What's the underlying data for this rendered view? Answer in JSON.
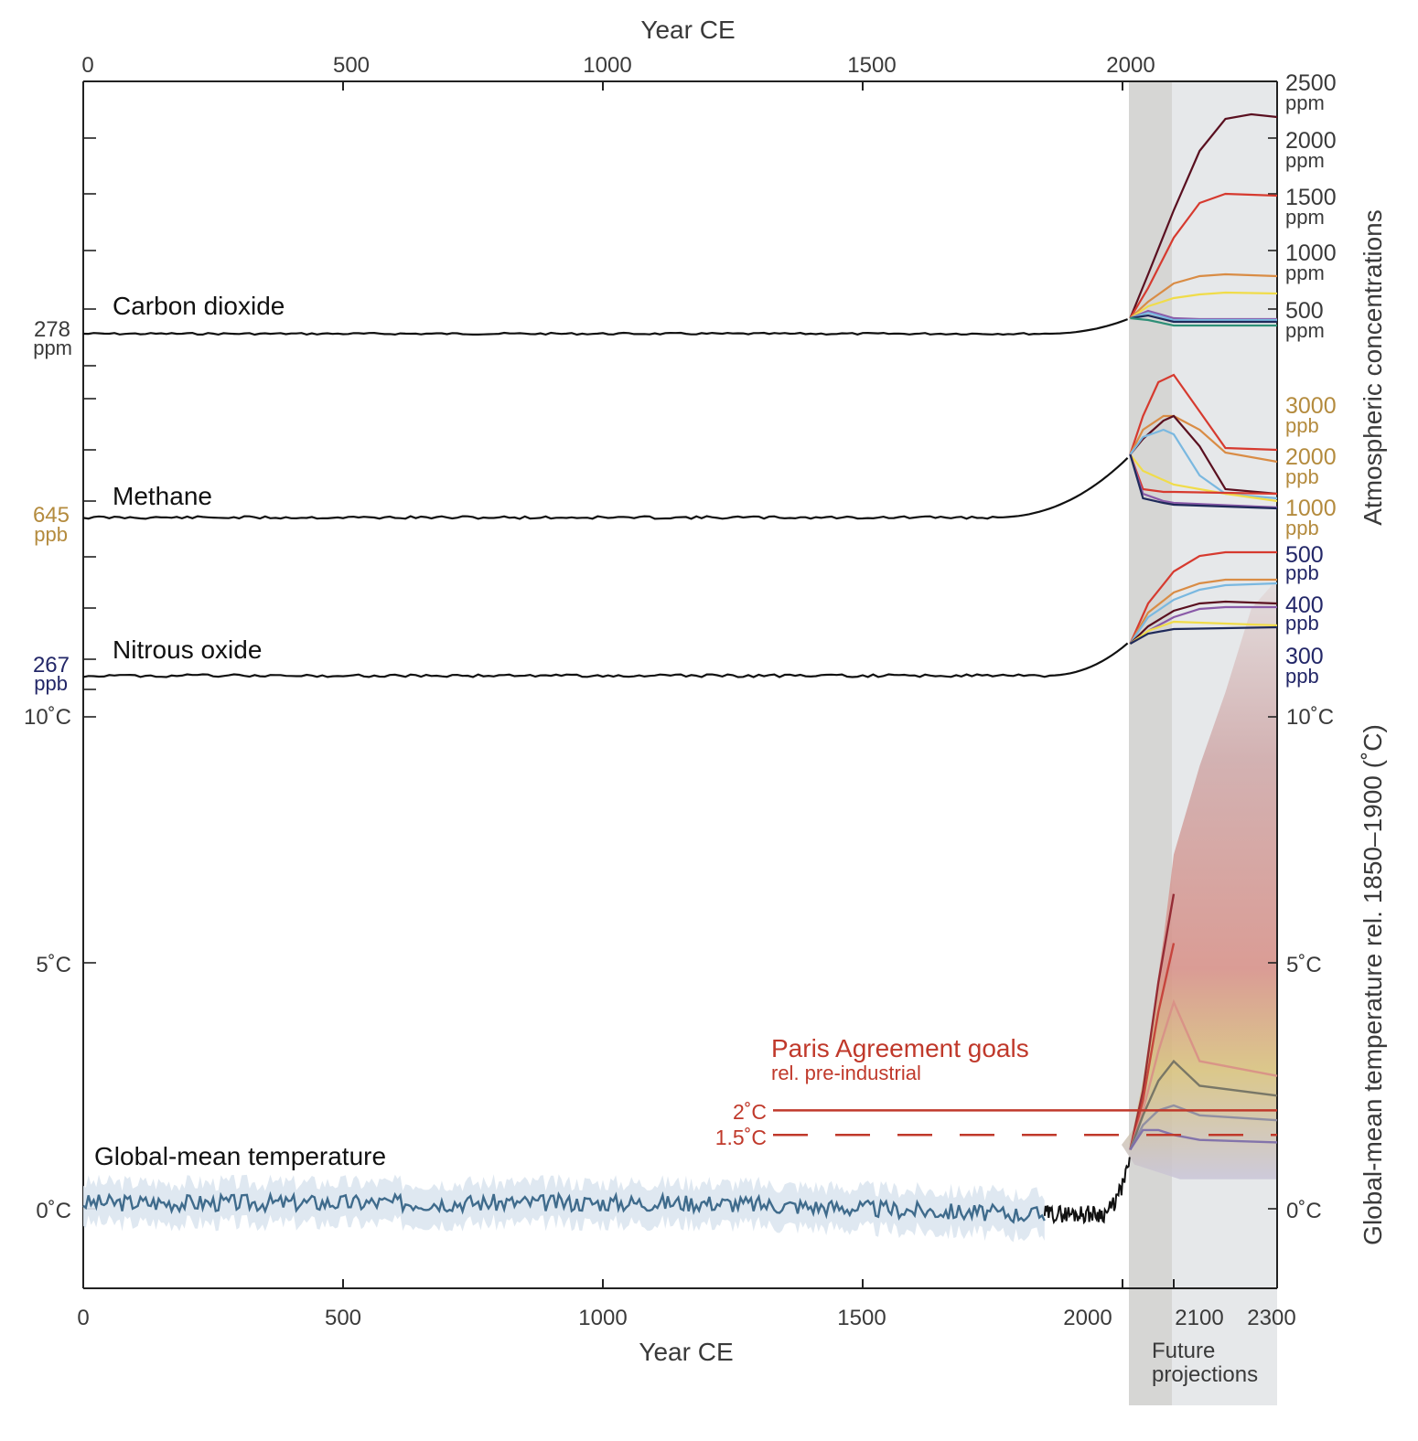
{
  "chart_data": {
    "type": "line",
    "top_axis": {
      "label": "Year CE",
      "ticks": [
        "0",
        "500",
        "1000",
        "1500",
        "2000"
      ]
    },
    "bottom_axis": {
      "label": "Year CE",
      "ticks": [
        "0",
        "500",
        "1000",
        "1500",
        "2000",
        "2100",
        "2300"
      ]
    },
    "right_axis_title_concentration": "Atmospheric concentrations",
    "right_axis_title_temperature": "Global-mean temperature rel. 1850–1900 (˚C)",
    "future_label": "Future projections",
    "future_label_line1": "Future",
    "future_label_line2": "projections",
    "x_range": [
      0,
      2300
    ],
    "future_start_year": 2015,
    "future_2100_year": 2100,
    "colors": {
      "co2_unit": "#3a3a3a",
      "ch4_unit": "#b48b3e",
      "n2o_unit": "#232768",
      "paris": "#c0392b",
      "historical": "#111111",
      "reconstruction": "#3f6b8c",
      "reconstruction_band": "#dbe5ef",
      "future_band_dark": "#d6d6d4",
      "future_band_light": "#e6e8ea",
      "ssp_colors": [
        "#5a1020",
        "#d63a2f",
        "#d98c45",
        "#f0dc4a",
        "#7ab8e0",
        "#1f2a5a",
        "#8a5aa8",
        "#2e8f77"
      ]
    },
    "series": [
      {
        "name": "Carbon dioxide",
        "start_label": "278",
        "start_unit": "ppm",
        "ticks": [
          {
            "value": "2500",
            "unit": "ppm"
          },
          {
            "value": "2000",
            "unit": "ppm"
          },
          {
            "value": "1500",
            "unit": "ppm"
          },
          {
            "value": "1000",
            "unit": "ppm"
          },
          {
            "value": "500",
            "unit": "ppm"
          }
        ]
      },
      {
        "name": "Methane",
        "start_label": "645",
        "start_unit": "ppb",
        "ticks": [
          {
            "value": "3000",
            "unit": "ppb"
          },
          {
            "value": "2000",
            "unit": "ppb"
          },
          {
            "value": "1000",
            "unit": "ppb"
          }
        ]
      },
      {
        "name": "Nitrous oxide",
        "start_label": "267",
        "start_unit": "ppb",
        "ticks": [
          {
            "value": "500",
            "unit": "ppb"
          },
          {
            "value": "400",
            "unit": "ppb"
          },
          {
            "value": "300",
            "unit": "ppb"
          }
        ]
      },
      {
        "name": "Global-mean temperature",
        "temp_ticks": [
          "10˚C",
          "5˚C",
          "0˚C"
        ],
        "temp_range": [
          -1.5,
          10
        ]
      }
    ],
    "paris": {
      "title": "Paris Agreement goals",
      "subtitle": "rel. pre-industrial",
      "goal_2": "2˚C",
      "goal_15": "1.5˚C",
      "values": [
        2.0,
        1.5
      ]
    }
  }
}
